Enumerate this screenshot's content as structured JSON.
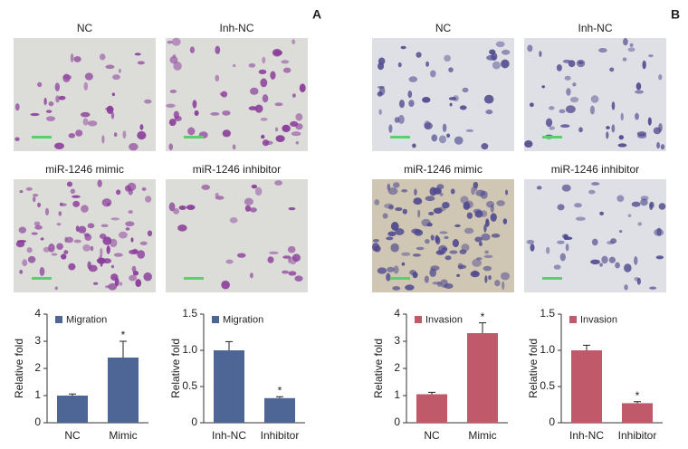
{
  "panels": [
    {
      "label": "A",
      "images": [
        "NC",
        "Inh-NC",
        "miR-1246 mimic",
        "miR-1246 inhibitor"
      ]
    },
    {
      "label": "B",
      "images": [
        "NC",
        "Inh-NC",
        "miR-1246 mimic",
        "miR-1246 inhibitor"
      ]
    }
  ],
  "chart_data": [
    {
      "type": "bar",
      "ylabel": "Relative fold",
      "categories": [
        "NC",
        "Mimic"
      ],
      "series": [
        {
          "name": "Migration",
          "color": "#4e6696",
          "values": [
            1.0,
            2.4
          ],
          "errors": [
            0.06,
            0.6
          ]
        }
      ],
      "significance": [
        null,
        "*"
      ],
      "ylim": [
        0,
        4
      ],
      "yticks": [
        0,
        1,
        2,
        3,
        4
      ]
    },
    {
      "type": "bar",
      "ylabel": "Relative fold",
      "categories": [
        "Inh-NC",
        "Inhibitor"
      ],
      "series": [
        {
          "name": "Migration",
          "color": "#4e6696",
          "values": [
            1.0,
            0.34
          ],
          "errors": [
            0.12,
            0.02
          ]
        }
      ],
      "significance": [
        null,
        "*"
      ],
      "ylim": [
        0,
        1.5
      ],
      "yticks": [
        0,
        0.5,
        {
          "value": 1.0,
          "label": "1.0"
        },
        1.5
      ]
    },
    {
      "type": "bar",
      "ylabel": "Relative fold",
      "categories": [
        "NC",
        "Mimic"
      ],
      "series": [
        {
          "name": "Invasion",
          "color": "#c0596a",
          "values": [
            1.05,
            3.3
          ],
          "errors": [
            0.07,
            0.38
          ]
        }
      ],
      "significance": [
        null,
        "*"
      ],
      "ylim": [
        0,
        4
      ],
      "yticks": [
        0,
        1,
        2,
        3,
        4
      ]
    },
    {
      "type": "bar",
      "ylabel": "Relative fold",
      "categories": [
        "Inh-NC",
        "Inhibitor"
      ],
      "series": [
        {
          "name": "Invasion",
          "color": "#c0596a",
          "values": [
            1.0,
            0.27
          ],
          "errors": [
            0.07,
            0.02
          ]
        }
      ],
      "significance": [
        null,
        "*"
      ],
      "ylim": [
        0,
        1.5
      ],
      "yticks": [
        0,
        0.5,
        {
          "value": 1.0,
          "label": "1.0"
        },
        1.5
      ]
    }
  ]
}
